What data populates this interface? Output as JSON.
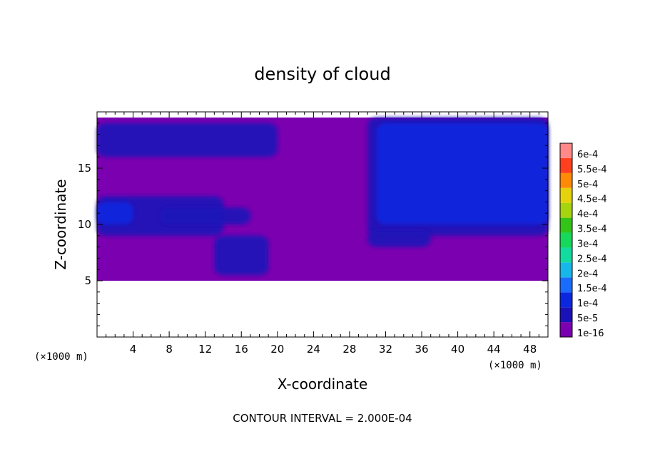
{
  "chart_data": {
    "type": "heatmap",
    "title": "density of cloud",
    "xlabel": "X-coordinate",
    "ylabel": "Z-coordinate",
    "x_unit": "(×1000 m)",
    "z_unit": "(×1000 m)",
    "xlim": [
      0,
      50
    ],
    "ylim": [
      0,
      20
    ],
    "x_ticks": [
      4,
      8,
      12,
      16,
      20,
      24,
      28,
      32,
      36,
      40,
      44,
      48
    ],
    "y_ticks": [
      5,
      10,
      15
    ],
    "footer": "CONTOUR INTERVAL = 2.000E-04",
    "colorbar": {
      "labels": [
        "1e-16",
        "5e-5",
        "1e-4",
        "1.5e-4",
        "2e-4",
        "2.5e-4",
        "3e-4",
        "3.5e-4",
        "4e-4",
        "4.5e-4",
        "5e-4",
        "5.5e-4",
        "6e-4"
      ],
      "colors": [
        "#7a00b0",
        "#1a12b8",
        "#0b28e0",
        "#1a6cff",
        "#17b7ea",
        "#12dba0",
        "#16d85a",
        "#33c417",
        "#a6d40f",
        "#e6d20c",
        "#ff8a08",
        "#ff3f1d",
        "#ff8888"
      ]
    },
    "cloud_layer_z": [
      5,
      19.5
    ],
    "regions": [
      {
        "level": "5e-5",
        "x": [
          0,
          20
        ],
        "z": [
          16,
          19
        ]
      },
      {
        "level": "5e-5",
        "x": [
          30,
          50
        ],
        "z": [
          9,
          19.5
        ]
      },
      {
        "level": "1e-4",
        "x": [
          31,
          50
        ],
        "z": [
          10,
          19
        ]
      },
      {
        "level": "5e-5",
        "x": [
          0,
          14
        ],
        "z": [
          9,
          12.5
        ]
      },
      {
        "level": "1e-4",
        "x": [
          0,
          4
        ],
        "z": [
          10,
          12
        ]
      },
      {
        "level": "5e-5",
        "x": [
          7,
          17
        ],
        "z": [
          10,
          11.5
        ]
      },
      {
        "level": "5e-5",
        "x": [
          13,
          19
        ],
        "z": [
          5.5,
          9
        ]
      },
      {
        "level": "5e-5",
        "x": [
          30,
          37
        ],
        "z": [
          8,
          9.5
        ]
      }
    ]
  }
}
